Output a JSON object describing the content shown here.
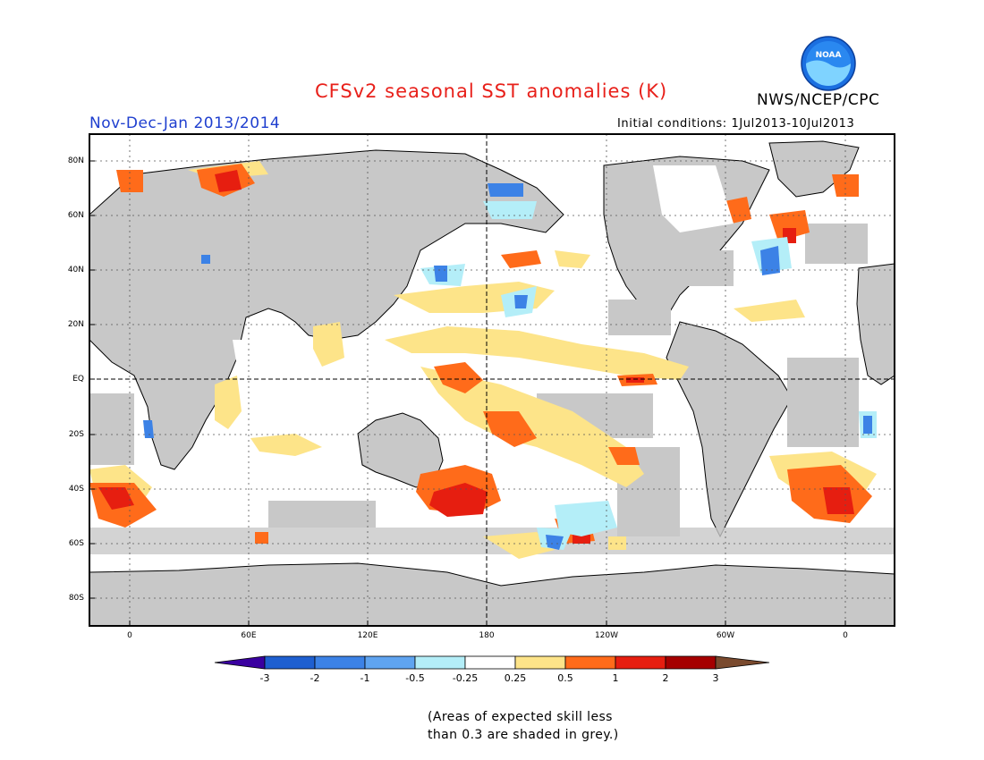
{
  "header": {
    "title": "CFSv2 seasonal SST anomalies (K)",
    "period": "Nov-Dec-Jan 2013/2014",
    "agency": "NWS/NCEP/CPC",
    "initial_conditions": "Initial conditions: 1Jul2013-10Jul2013",
    "logo_text": "NOAA"
  },
  "map": {
    "projection": "cylindrical",
    "lon_range": [
      -20,
      380
    ],
    "lat_range": [
      -90,
      90
    ],
    "land_color": "#c8c8c8",
    "dashed_reference_lines": [
      "EQ",
      "180"
    ],
    "lat_ticks": [
      "80N",
      "60N",
      "40N",
      "20N",
      "EQ",
      "20S",
      "40S",
      "60S",
      "80S"
    ],
    "lon_ticks": [
      "0",
      "60E",
      "120E",
      "180",
      "120W",
      "60W",
      "0"
    ]
  },
  "colorbar": {
    "labels": [
      "-3",
      "-2",
      "-1",
      "-0.5",
      "-0.25",
      "0.25",
      "0.5",
      "1",
      "2",
      "3"
    ],
    "colors": [
      "#3a00a0",
      "#1e5fd0",
      "#3c82e6",
      "#5fa4f0",
      "#b4eef8",
      "#ffffff",
      "#fde489",
      "#ff6b1a",
      "#e61e10",
      "#a50000",
      "#7a4a2e"
    ]
  },
  "footnote": {
    "line1": "(Areas of expected skill less",
    "line2": "than 0.3 are shaded in grey.)"
  }
}
